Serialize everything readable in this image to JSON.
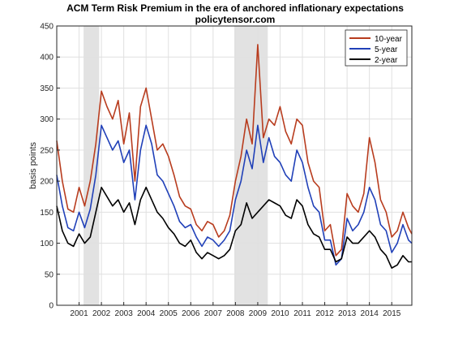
{
  "chart_data": {
    "type": "line",
    "title": "ACM Term Risk Premium in the era of anchored inflationary expectations",
    "subtitle": "policytensor.com",
    "xlabel": "",
    "ylabel": "basis points",
    "xlim": [
      2000.0,
      2015.9
    ],
    "ylim": [
      0,
      450
    ],
    "x_tick_labels": [
      "2001",
      "2002",
      "2003",
      "2004",
      "2005",
      "2006",
      "2007",
      "2008",
      "2009",
      "2010",
      "2011",
      "2012",
      "2013",
      "2014",
      "2015"
    ],
    "y_tick_labels": [
      "0",
      "50",
      "100",
      "150",
      "200",
      "250",
      "300",
      "350",
      "400",
      "450"
    ],
    "grid": true,
    "legend_position": "top-right",
    "recessions": [
      {
        "start": 2001.2,
        "end": 2001.9
      },
      {
        "start": 2007.95,
        "end": 2009.45
      }
    ],
    "x": [
      2000.0,
      2000.25,
      2000.5,
      2000.75,
      2001.0,
      2001.25,
      2001.5,
      2001.75,
      2002.0,
      2002.25,
      2002.5,
      2002.75,
      2003.0,
      2003.25,
      2003.5,
      2003.75,
      2004.0,
      2004.25,
      2004.5,
      2004.75,
      2005.0,
      2005.25,
      2005.5,
      2005.75,
      2006.0,
      2006.25,
      2006.5,
      2006.75,
      2007.0,
      2007.25,
      2007.5,
      2007.75,
      2008.0,
      2008.25,
      2008.5,
      2008.75,
      2009.0,
      2009.25,
      2009.5,
      2009.75,
      2010.0,
      2010.25,
      2010.5,
      2010.75,
      2011.0,
      2011.25,
      2011.5,
      2011.75,
      2012.0,
      2012.25,
      2012.5,
      2012.75,
      2013.0,
      2013.25,
      2013.5,
      2013.75,
      2014.0,
      2014.25,
      2014.5,
      2014.75,
      2015.0,
      2015.25,
      2015.5,
      2015.75,
      2015.9
    ],
    "series": [
      {
        "name": "10-year",
        "color": "#b83c1e",
        "values": [
          265,
          200,
          155,
          150,
          190,
          160,
          200,
          260,
          345,
          320,
          300,
          330,
          260,
          310,
          200,
          320,
          350,
          300,
          250,
          260,
          240,
          210,
          175,
          160,
          155,
          130,
          120,
          135,
          130,
          110,
          120,
          145,
          200,
          240,
          300,
          260,
          420,
          270,
          300,
          290,
          320,
          280,
          260,
          300,
          290,
          230,
          200,
          190,
          120,
          130,
          80,
          90,
          180,
          160,
          150,
          180,
          270,
          230,
          170,
          150,
          110,
          120,
          150,
          125,
          115
        ]
      },
      {
        "name": "5-year",
        "color": "#2040b8",
        "values": [
          210,
          160,
          125,
          120,
          150,
          125,
          155,
          210,
          290,
          270,
          250,
          265,
          230,
          250,
          170,
          250,
          290,
          260,
          210,
          200,
          180,
          160,
          135,
          125,
          130,
          110,
          95,
          110,
          105,
          95,
          105,
          120,
          170,
          200,
          250,
          220,
          290,
          230,
          270,
          240,
          230,
          210,
          200,
          250,
          230,
          190,
          160,
          150,
          105,
          105,
          65,
          75,
          140,
          120,
          130,
          150,
          190,
          170,
          130,
          120,
          85,
          100,
          130,
          105,
          100
        ]
      },
      {
        "name": "2-year",
        "color": "#000000",
        "values": [
          160,
          120,
          100,
          95,
          115,
          100,
          110,
          150,
          190,
          175,
          160,
          170,
          150,
          165,
          130,
          170,
          190,
          170,
          150,
          140,
          125,
          115,
          100,
          95,
          105,
          85,
          75,
          85,
          80,
          75,
          80,
          90,
          120,
          130,
          165,
          140,
          150,
          160,
          170,
          165,
          160,
          145,
          140,
          170,
          160,
          130,
          115,
          110,
          90,
          90,
          70,
          75,
          110,
          100,
          100,
          110,
          120,
          110,
          90,
          80,
          60,
          65,
          80,
          70,
          70
        ]
      }
    ]
  }
}
